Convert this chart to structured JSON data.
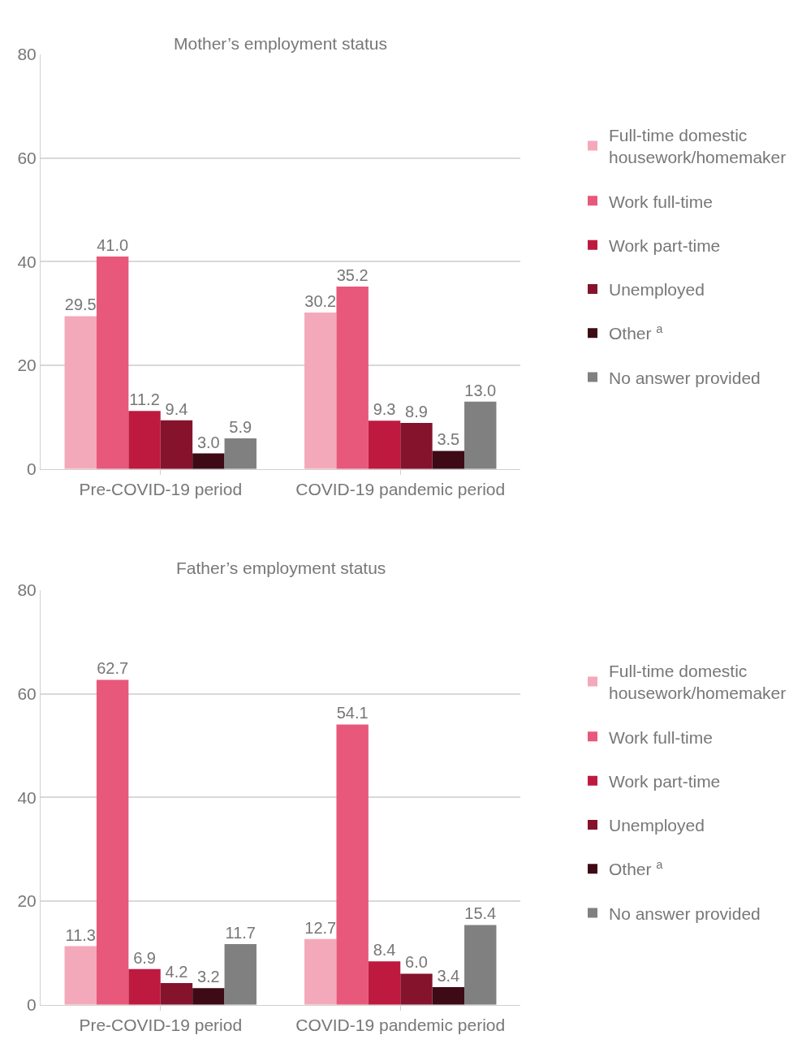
{
  "chart_data": [
    {
      "type": "bar",
      "title": "Mother’s employment status",
      "categories": [
        "Pre-COVID-19 period",
        "COVID-19 pandemic period"
      ],
      "series": [
        {
          "name": "Full-time domestic housework/homemaker",
          "color": "#f4a9ba",
          "values": [
            29.5,
            30.2
          ],
          "value_labels": [
            "29.5",
            "30.2"
          ]
        },
        {
          "name": "Work full-time",
          "color": "#e8587a",
          "values": [
            41.0,
            35.2
          ],
          "value_labels": [
            "41.0",
            "35.2"
          ]
        },
        {
          "name": "Work part-time",
          "color": "#be1a40",
          "values": [
            11.2,
            9.3
          ],
          "value_labels": [
            "11.2",
            "9.3"
          ]
        },
        {
          "name": "Unemployed",
          "color": "#85132c",
          "values": [
            9.4,
            8.9
          ],
          "value_labels": [
            "9.4",
            "8.9"
          ]
        },
        {
          "name": "Other $^{a}$",
          "color": "#3d0a16",
          "values": [
            3.0,
            3.5
          ],
          "value_labels": [
            "3.0",
            "3.5"
          ]
        },
        {
          "name": "No answer provided",
          "color": "#808080",
          "values": [
            5.9,
            13.0
          ],
          "value_labels": [
            "5.9",
            "13.0"
          ]
        }
      ],
      "ylim": [
        0,
        80
      ],
      "yticks": [
        0,
        20,
        40,
        60,
        80
      ],
      "grid": "y",
      "legend": "right"
    },
    {
      "type": "bar",
      "title": "Father’s employment status",
      "categories": [
        "Pre-COVID-19 period",
        "COVID-19 pandemic period"
      ],
      "series": [
        {
          "name": "Full-time domestic housework/homemaker",
          "color": "#f4a9ba",
          "values": [
            11.3,
            12.7
          ],
          "value_labels": [
            "11.3",
            "12.7"
          ]
        },
        {
          "name": "Work full-time",
          "color": "#e8587a",
          "values": [
            62.7,
            54.1
          ],
          "value_labels": [
            "62.7",
            "54.1"
          ]
        },
        {
          "name": "Work part-time",
          "color": "#be1a40",
          "values": [
            6.9,
            8.4
          ],
          "value_labels": [
            "6.9",
            "8.4"
          ]
        },
        {
          "name": "Unemployed",
          "color": "#85132c",
          "values": [
            4.2,
            6.0
          ],
          "value_labels": [
            "4.2",
            "6.0"
          ]
        },
        {
          "name": "Other $^{a}$",
          "color": "#3d0a16",
          "values": [
            3.2,
            3.4
          ],
          "value_labels": [
            "3.2",
            "3.4"
          ]
        },
        {
          "name": "No answer provided",
          "color": "#808080",
          "values": [
            11.7,
            15.4
          ],
          "value_labels": [
            "11.7",
            "15.4"
          ]
        }
      ],
      "ylim": [
        0,
        80
      ],
      "yticks": [
        0,
        20,
        40,
        60,
        80
      ],
      "grid": "y",
      "legend": "right"
    }
  ]
}
